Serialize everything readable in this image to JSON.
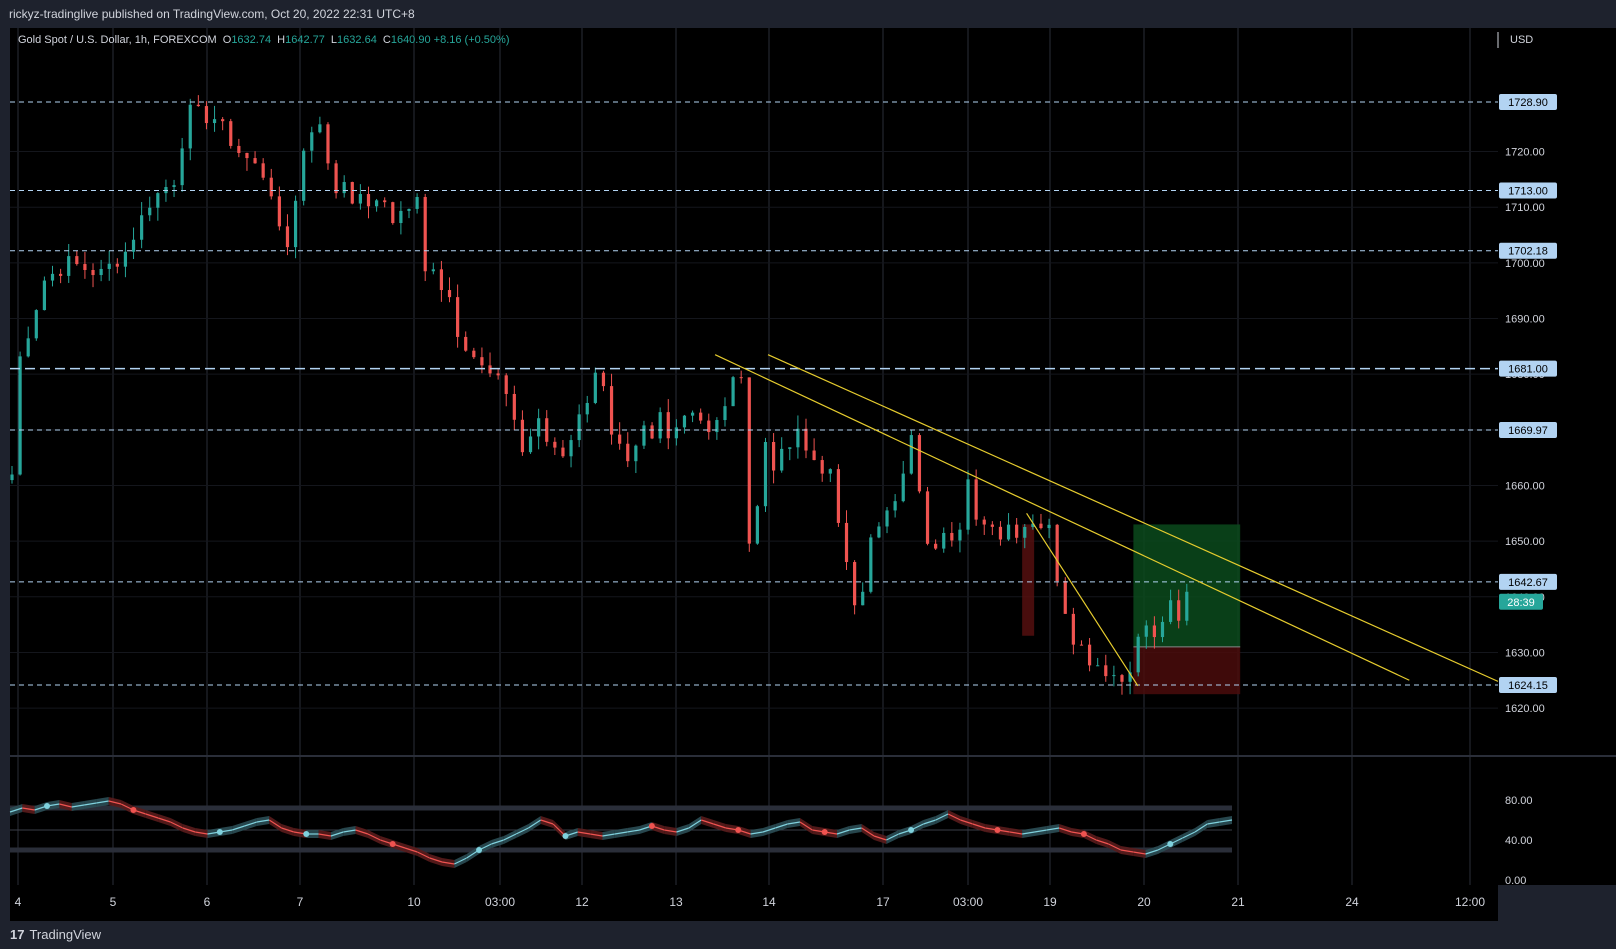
{
  "header": {
    "published_text": "rickyz-tradinglive published on TradingView.com, Oct 20, 2022 22:31 UTC+8"
  },
  "footer": {
    "brand": "TradingView",
    "logo_icon": "tradingview-logo-icon"
  },
  "legend": {
    "symbol": "Gold Spot / U.S. Dollar, 1h, FOREXCOM",
    "o_label": "O",
    "o_value": "1632.74",
    "h_label": "H",
    "h_value": "1642.77",
    "l_label": "L",
    "l_value": "1632.64",
    "c_label": "C",
    "c_value": "1640.90",
    "change": "+8.16 (+0.50%)"
  },
  "colors": {
    "background": "#000000",
    "frame": "#1e222d",
    "up": "#26a69a",
    "down": "#ef5350",
    "level_line": "#b2d3f2",
    "trendline": "#e6cc2e",
    "grid": "#2a2e39",
    "osc_light": "#7fd1dd",
    "osc_red": "#ef5350",
    "position_profit": "#0b4a1c",
    "position_loss": "#4a0c0c"
  },
  "chart_data": [
    {
      "type": "candlestick",
      "title": "Gold Spot / U.S. Dollar, 1h, FOREXCOM",
      "currency_label": "USD",
      "y_ticks": [
        "1620.00",
        "1630.00",
        "1640.00",
        "1650.00",
        "1660.00",
        "1670.00",
        "1680.00",
        "1690.00",
        "1700.00",
        "1710.00",
        "1720.00"
      ],
      "x_ticks": [
        "4",
        "5",
        "6",
        "7",
        "10",
        "03:00",
        "12",
        "13",
        "14",
        "17",
        "03:00",
        "19",
        "20",
        "21",
        "24",
        "12:00"
      ],
      "ylim": [
        1616,
        1736
      ],
      "levels": [
        {
          "label": "1728.90",
          "value": 1728.9,
          "dash": "short"
        },
        {
          "label": "1713.00",
          "value": 1713.0,
          "dash": "short"
        },
        {
          "label": "1702.18",
          "value": 1702.18,
          "dash": "short"
        },
        {
          "label": "1681.00",
          "value": 1681.0,
          "dash": "long"
        },
        {
          "label": "1669.97",
          "value": 1669.97,
          "dash": "short"
        },
        {
          "label": "1642.67",
          "value": 1642.67,
          "dash": "short"
        },
        {
          "label": "1624.15",
          "value": 1624.15,
          "dash": "short"
        }
      ],
      "current_time_badge": "28:39",
      "price_path": [
        [
          0,
          1662
        ],
        [
          1,
          1683
        ],
        [
          3,
          1697
        ],
        [
          5,
          1700
        ],
        [
          8,
          1698
        ],
        [
          10,
          1702
        ],
        [
          12,
          1711
        ],
        [
          14,
          1715
        ],
        [
          15,
          1722
        ],
        [
          16,
          1727
        ],
        [
          18,
          1726
        ],
        [
          20,
          1720
        ],
        [
          22,
          1716
        ],
        [
          23,
          1713
        ],
        [
          24,
          1705
        ],
        [
          25,
          1703
        ],
        [
          26,
          1712
        ],
        [
          27,
          1720
        ],
        [
          28,
          1724
        ],
        [
          29,
          1726
        ],
        [
          30,
          1717
        ],
        [
          31,
          1713
        ],
        [
          32,
          1715
        ],
        [
          33,
          1712
        ],
        [
          34,
          1711
        ],
        [
          35,
          1711
        ],
        [
          36,
          1710
        ],
        [
          37,
          1711
        ],
        [
          38,
          1708
        ],
        [
          40,
          1711
        ],
        [
          41,
          1698
        ],
        [
          42,
          1700
        ],
        [
          43,
          1696
        ],
        [
          44,
          1694
        ],
        [
          45,
          1688
        ],
        [
          47,
          1681
        ],
        [
          49,
          1677
        ],
        [
          50,
          1672
        ],
        [
          51,
          1666
        ],
        [
          52,
          1669
        ],
        [
          53,
          1671
        ],
        [
          54,
          1668
        ],
        [
          55,
          1667
        ],
        [
          56,
          1666
        ],
        [
          57,
          1669
        ],
        [
          58,
          1672
        ],
        [
          59,
          1676
        ],
        [
          60,
          1681
        ],
        [
          61,
          1677
        ],
        [
          62,
          1668
        ],
        [
          63,
          1666
        ],
        [
          64,
          1663
        ],
        [
          65,
          1666
        ],
        [
          66,
          1670
        ],
        [
          67,
          1668
        ],
        [
          68,
          1673
        ],
        [
          69,
          1670
        ],
        [
          70,
          1671
        ],
        [
          71,
          1673
        ],
        [
          72,
          1674
        ],
        [
          73,
          1672
        ],
        [
          74,
          1669
        ],
        [
          75,
          1671
        ],
        [
          76,
          1675
        ],
        [
          77,
          1678
        ],
        [
          78,
          1681
        ],
        [
          79,
          1650
        ],
        [
          80,
          1656
        ],
        [
          81,
          1668
        ],
        [
          82,
          1664
        ],
        [
          83,
          1665
        ],
        [
          84,
          1667
        ],
        [
          85,
          1669
        ],
        [
          86,
          1666
        ],
        [
          88,
          1662
        ],
        [
          89,
          1652
        ],
        [
          90,
          1647
        ],
        [
          91,
          1640
        ],
        [
          92,
          1642
        ],
        [
          93,
          1650
        ],
        [
          94,
          1652
        ],
        [
          95,
          1655
        ],
        [
          96,
          1656
        ],
        [
          97,
          1663
        ],
        [
          98,
          1668
        ],
        [
          99,
          1660
        ],
        [
          100,
          1651
        ],
        [
          101,
          1650
        ],
        [
          102,
          1653
        ],
        [
          103,
          1650
        ],
        [
          104,
          1651
        ],
        [
          105,
          1660
        ],
        [
          106,
          1655
        ],
        [
          107,
          1653
        ],
        [
          108,
          1654
        ],
        [
          109,
          1651
        ],
        [
          110,
          1653
        ],
        [
          111,
          1652
        ],
        [
          112,
          1653
        ],
        [
          113,
          1654
        ],
        [
          114,
          1653
        ],
        [
          115,
          1652
        ],
        [
          116,
          1644
        ],
        [
          117,
          1638
        ],
        [
          118,
          1633
        ],
        [
          119,
          1631
        ],
        [
          120,
          1629
        ],
        [
          121,
          1628
        ],
        [
          122,
          1627
        ],
        [
          123,
          1626
        ],
        [
          124,
          1625
        ],
        [
          125,
          1628
        ],
        [
          126,
          1632
        ],
        [
          127,
          1635
        ],
        [
          128,
          1632
        ],
        [
          129,
          1636
        ],
        [
          130,
          1638
        ],
        [
          131,
          1635
        ],
        [
          132,
          1640.9
        ]
      ],
      "trendlines": [
        {
          "from": [
            79,
            1683.5
          ],
          "to": [
            157,
            1625
          ]
        },
        {
          "from": [
            114,
            1655
          ],
          "to": [
            126.5,
            1624
          ]
        }
      ],
      "position": {
        "entry": 1631.0,
        "target": 1653.0,
        "stop": 1622.5,
        "start_bar": 126,
        "end_bar": 138
      }
    },
    {
      "type": "line",
      "title": "",
      "y_ticks": [
        "80.00",
        "40.00",
        "0.00"
      ],
      "ylim": [
        0,
        100
      ],
      "bands": [
        72,
        30
      ],
      "midline": 50,
      "series": [
        {
          "values": [
            68,
            72,
            70,
            74,
            76,
            73,
            75,
            77,
            79,
            76,
            70,
            66,
            62,
            58,
            52,
            48,
            46,
            48,
            50,
            54,
            58,
            60,
            52,
            48,
            46,
            46,
            44,
            48,
            50,
            46,
            40,
            36,
            32,
            28,
            22,
            18,
            16,
            22,
            30,
            36,
            40,
            46,
            52,
            60,
            56,
            44,
            48,
            46,
            44,
            46,
            48,
            50,
            54,
            50,
            48,
            52,
            60,
            56,
            52,
            50,
            46,
            48,
            52,
            56,
            58,
            50,
            48,
            46,
            50,
            52,
            44,
            40,
            46,
            50,
            56,
            60,
            66,
            60,
            56,
            52,
            50,
            48,
            46,
            48,
            50,
            52,
            48,
            46,
            40,
            36,
            30,
            28,
            26,
            30,
            36,
            42,
            48,
            56,
            58,
            60
          ]
        }
      ]
    }
  ]
}
